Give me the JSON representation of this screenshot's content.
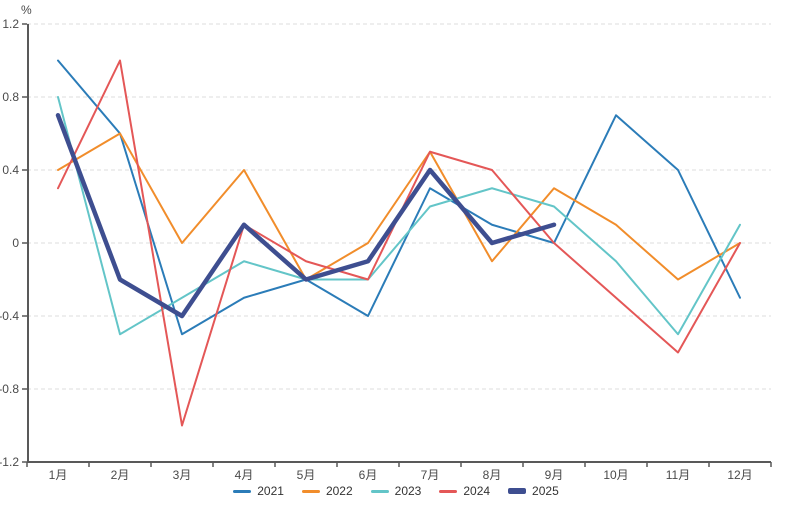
{
  "unit": "%",
  "chart_data": {
    "type": "line",
    "title": "",
    "xlabel": "",
    "ylabel": "%",
    "ylim": [
      -1.2,
      1.2
    ],
    "y_tick_labels": [
      "1.2",
      "0.8",
      "0.4",
      "0",
      "-0.4",
      "-0.8",
      "-1.2"
    ],
    "grid": true,
    "grid_style": "dashed",
    "legend_position": "bottom",
    "categories": [
      "1月",
      "2月",
      "3月",
      "4月",
      "5月",
      "6月",
      "7月",
      "8月",
      "9月",
      "10月",
      "11月",
      "12月"
    ],
    "series": [
      {
        "name": "2021",
        "color": "#2B7CB8",
        "width": 2,
        "values": [
          1.0,
          0.6,
          -0.5,
          -0.3,
          -0.2,
          -0.4,
          0.3,
          0.1,
          0.0,
          0.7,
          0.4,
          -0.3
        ]
      },
      {
        "name": "2022",
        "color": "#F18D2B",
        "width": 2,
        "values": [
          0.4,
          0.6,
          0.0,
          0.4,
          -0.2,
          0.0,
          0.5,
          -0.1,
          0.3,
          0.1,
          -0.2,
          0.0
        ]
      },
      {
        "name": "2023",
        "color": "#63C5C8",
        "width": 2,
        "values": [
          0.8,
          -0.5,
          -0.3,
          -0.1,
          -0.2,
          -0.2,
          0.2,
          0.3,
          0.2,
          -0.1,
          -0.5,
          0.1
        ]
      },
      {
        "name": "2024",
        "color": "#E45757",
        "width": 2,
        "values": [
          0.3,
          1.0,
          -1.0,
          0.1,
          -0.1,
          -0.2,
          0.5,
          0.4,
          0.0,
          -0.3,
          -0.6,
          0.0
        ]
      },
      {
        "name": "2025",
        "color": "#3E4E90",
        "width": 4.5,
        "values": [
          0.7,
          -0.2,
          -0.4,
          0.1,
          -0.2,
          -0.1,
          0.4,
          0.0,
          0.1
        ]
      }
    ],
    "colors": {
      "axis": "#595959",
      "gridline": "#dddddd",
      "tick_text": "#4a4a4a",
      "legend_text": "#333333"
    }
  }
}
